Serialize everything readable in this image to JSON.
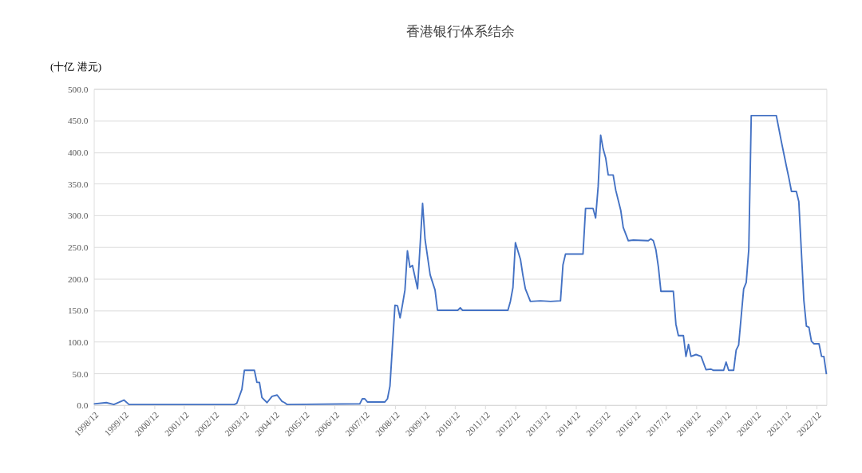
{
  "chart_data": {
    "type": "line",
    "title": "香港银行体系结余",
    "ylabel": "(十亿 港元)",
    "x": [
      "1998-12",
      "1999-05",
      "1999-08",
      "1999-12",
      "2000-02",
      "2003-08",
      "2003-09",
      "2003-11",
      "2003-12",
      "2004-04",
      "2004-05",
      "2004-06",
      "2004-07",
      "2004-09",
      "2004-11",
      "2005-01",
      "2005-03",
      "2005-04",
      "2005-05",
      "2007-10",
      "2007-11",
      "2007-12",
      "2008-01",
      "2008-08",
      "2008-09",
      "2008-10",
      "2008-12",
      "2009-01",
      "2009-02",
      "2009-03",
      "2009-04",
      "2009-05",
      "2009-06",
      "2009-07",
      "2009-09",
      "2009-11",
      "2009-12",
      "2010-02",
      "2010-04",
      "2010-05",
      "2011-01",
      "2011-02",
      "2011-03",
      "2012-09",
      "2012-10",
      "2012-11",
      "2012-12",
      "2013-02",
      "2013-03",
      "2013-04",
      "2013-06",
      "2013-10",
      "2014-02",
      "2014-06",
      "2014-07",
      "2014-08",
      "2015-03",
      "2015-04",
      "2015-07",
      "2015-08",
      "2015-09",
      "2015-10",
      "2015-11",
      "2015-12",
      "2016-01",
      "2016-03",
      "2016-04",
      "2016-06",
      "2016-07",
      "2016-09",
      "2016-11",
      "2017-05",
      "2017-06",
      "2017-07",
      "2017-08",
      "2017-09",
      "2017-10",
      "2018-03",
      "2018-04",
      "2018-05",
      "2018-07",
      "2018-08",
      "2018-09",
      "2018-10",
      "2018-12",
      "2019-02",
      "2019-04",
      "2019-06",
      "2019-07",
      "2019-11",
      "2019-12",
      "2020-01",
      "2020-03",
      "2020-04",
      "2020-05",
      "2020-07",
      "2020-08",
      "2020-09",
      "2020-10",
      "2021-08",
      "2021-10",
      "2021-12",
      "2022-01",
      "2022-02",
      "2022-04",
      "2022-05",
      "2022-07",
      "2022-08",
      "2022-09",
      "2022-10",
      "2022-11",
      "2023-01",
      "2023-02",
      "2023-03",
      "2023-04"
    ],
    "series": [
      {
        "color": "#4472c4",
        "values": [
          2,
          4,
          1,
          8,
          1,
          1,
          3,
          25,
          55,
          55,
          36,
          36,
          12,
          4,
          14,
          16,
          6,
          4,
          1,
          2,
          10,
          10,
          5,
          5,
          10,
          30,
          158,
          157,
          138,
          158,
          182,
          244,
          218,
          221,
          184,
          319,
          262,
          206,
          182,
          150,
          150,
          154,
          150,
          150,
          164,
          186,
          257,
          230,
          206,
          184,
          164,
          165,
          164,
          165,
          222,
          239,
          239,
          311,
          311,
          296,
          346,
          427,
          405,
          391,
          364,
          364,
          340,
          308,
          281,
          260,
          261,
          260,
          263,
          260,
          246,
          218,
          180,
          180,
          128,
          110,
          110,
          77,
          96,
          77,
          80,
          77,
          56,
          57,
          55,
          55,
          68,
          55,
          55,
          87,
          95,
          184,
          194,
          246,
          458,
          458,
          417,
          378,
          359,
          338,
          338,
          322,
          166,
          125,
          123,
          101,
          97,
          97,
          77,
          77,
          49
        ]
      }
    ],
    "xlim": [
      "1998-12",
      "2023-04"
    ],
    "xticks": [
      {
        "value": "1998-12",
        "label": "1998/12"
      },
      {
        "value": "1999-12",
        "label": "1999/12"
      },
      {
        "value": "2000-12",
        "label": "2000/12"
      },
      {
        "value": "2001-12",
        "label": "2001/12"
      },
      {
        "value": "2002-12",
        "label": "2002/12"
      },
      {
        "value": "2003-12",
        "label": "2003/12"
      },
      {
        "value": "2004-12",
        "label": "2004/12"
      },
      {
        "value": "2005-12",
        "label": "2005/12"
      },
      {
        "value": "2006-12",
        "label": "2006/12"
      },
      {
        "value": "2007-12",
        "label": "2007/12"
      },
      {
        "value": "2008-12",
        "label": "2008/12"
      },
      {
        "value": "2009-12",
        "label": "2009/12"
      },
      {
        "value": "2010-12",
        "label": "2010/12"
      },
      {
        "value": "2011-12",
        "label": "2011/12"
      },
      {
        "value": "2012-12",
        "label": "2012/12"
      },
      {
        "value": "2013-12",
        "label": "2013/12"
      },
      {
        "value": "2014-12",
        "label": "2014/12"
      },
      {
        "value": "2015-12",
        "label": "2015/12"
      },
      {
        "value": "2016-12",
        "label": "2016/12"
      },
      {
        "value": "2017-12",
        "label": "2017/12"
      },
      {
        "value": "2018-12",
        "label": "2018/12"
      },
      {
        "value": "2019-12",
        "label": "2019/12"
      },
      {
        "value": "2020-12",
        "label": "2020/12"
      },
      {
        "value": "2021-12",
        "label": "2021/12"
      },
      {
        "value": "2022-12",
        "label": "2022/12"
      }
    ],
    "ylim": [
      0,
      500
    ],
    "yticks": [
      {
        "value": 0,
        "label": "0.0"
      },
      {
        "value": 50,
        "label": "50.0"
      },
      {
        "value": 100,
        "label": "100.0"
      },
      {
        "value": 150,
        "label": "150.0"
      },
      {
        "value": 200,
        "label": "200.0"
      },
      {
        "value": 250,
        "label": "250.0"
      },
      {
        "value": 300,
        "label": "300.0"
      },
      {
        "value": 350,
        "label": "350.0"
      },
      {
        "value": 400,
        "label": "400.0"
      },
      {
        "value": 450,
        "label": "450.0"
      },
      {
        "value": 500,
        "label": "500.0"
      }
    ],
    "grid": "y",
    "marker": "none",
    "line_style": "solid"
  }
}
